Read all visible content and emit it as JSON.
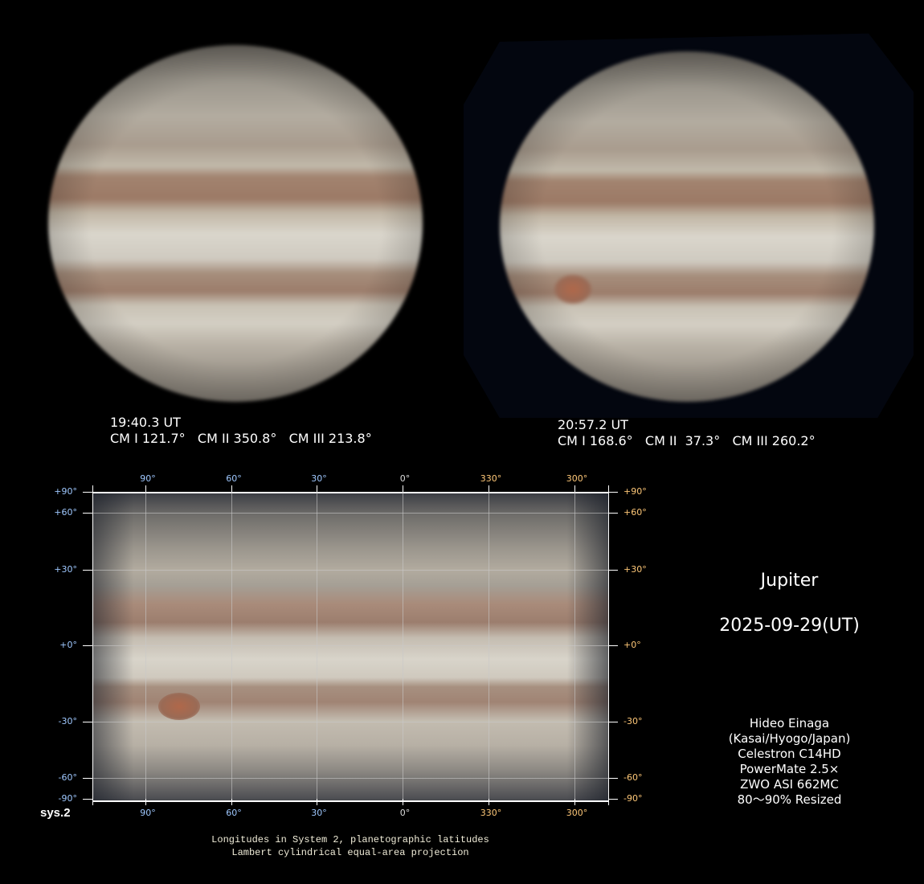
{
  "left_image": {
    "time": "19:40.3 UT",
    "cm": "CM I 121.7°   CM II 350.8°   CM III 213.8°"
  },
  "right_image": {
    "time": "20:57.2 UT",
    "cm": "CM I 168.6°   CM II  37.3°   CM III 260.2°"
  },
  "map": {
    "lon_labels": [
      "90°",
      "60°",
      "30°",
      "0°",
      "330°",
      "300°"
    ],
    "lat_labels": [
      "+90°",
      "+60°",
      "+30°",
      "+0°",
      "-30°",
      "-60°",
      "-90°"
    ],
    "system_label": "sys.2",
    "caption_line1": "Longitudes in System 2, planetographic latitudes",
    "caption_line2": "Lambert cylindrical equal-area projection",
    "left_label_color": "#9fc8ff",
    "right_label_color": "#ffc878"
  },
  "title": {
    "object": "Jupiter",
    "date": "2025-09-29(UT)"
  },
  "credits": [
    "Hideo Einaga",
    "(Kasai/Hyogo/Japan)",
    "Celestron C14HD",
    "PowerMate 2.5×",
    "ZWO ASI 662MC",
    "80～90% Resized"
  ]
}
